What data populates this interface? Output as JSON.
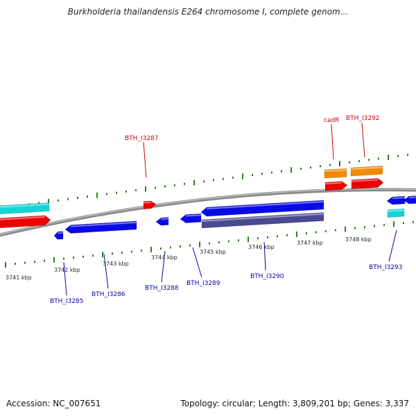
{
  "title": "Burkholderia thailandensis E264 chromosome I, complete genom...",
  "footer": {
    "accession": "Accession: NC_007651",
    "summary": "Topology: circular; Length: 3,809,201 bp; Genes: 3,337"
  },
  "colors": {
    "backbone": "#8a8a8a",
    "tick": "#2e7d1e",
    "label_forward": "#cc0000",
    "label_reverse": "#0000aa",
    "gene_red": "#ee0000",
    "gene_blue": "#0a0ae6",
    "gene_orange": "#f08a00",
    "gene_cyan": "#11d6d6",
    "gene_purple": "#4a4a90"
  },
  "scale_labels": [
    "3741 kbp",
    "3742 kbp",
    "3743 kbp",
    "3744 kbp",
    "3745 kbp",
    "3746 kbp",
    "3747 kbp",
    "3748 kbp"
  ],
  "gene_labels": {
    "forward": [
      "BTH_I3287",
      "cadR",
      "BTH_I3292"
    ],
    "reverse": [
      "BTH_I3285",
      "BTH_I3286",
      "BTH_I3288",
      "BTH_I3289",
      "BTH_I3290",
      "BTH_I3293"
    ]
  }
}
